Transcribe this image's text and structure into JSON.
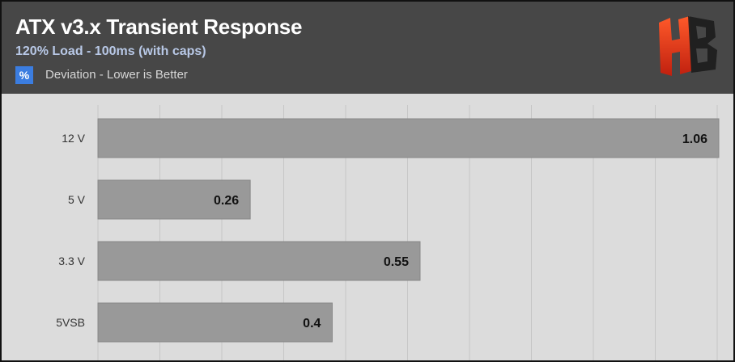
{
  "header": {
    "title": "ATX v3.x Transient Response",
    "subtitle": "120% Load - 100ms (with caps)",
    "legend_icon": "%",
    "legend_label": "Deviation - Lower is Better",
    "logo_icon": "hb-logo-icon",
    "logo_text": "HB"
  },
  "colors": {
    "bar": "#999999",
    "bar_stroke": "#888888",
    "grid": "#c6c6c6",
    "header_bg": "#474747",
    "plot_bg": "#dcdcdc",
    "legend_swatch": "#3b7de0",
    "logo_gradient": [
      "#ff3b2a",
      "#c0200f"
    ]
  },
  "chart_data": {
    "type": "bar",
    "orientation": "horizontal",
    "title": "ATX v3.x Transient Response",
    "subtitle": "120% Load - 100ms (with caps)",
    "categories": [
      "12 V",
      "5 V",
      "3.3 V",
      "5VSB"
    ],
    "series": [
      {
        "name": "Deviation - Lower is Better",
        "values": [
          1.06,
          0.26,
          0.55,
          0.4
        ]
      }
    ],
    "data_labels": [
      "1.06",
      "0.26",
      "0.55",
      "0.4"
    ],
    "xlim": [
      0,
      1.06
    ],
    "grid": true,
    "legend_position": "top-left"
  }
}
